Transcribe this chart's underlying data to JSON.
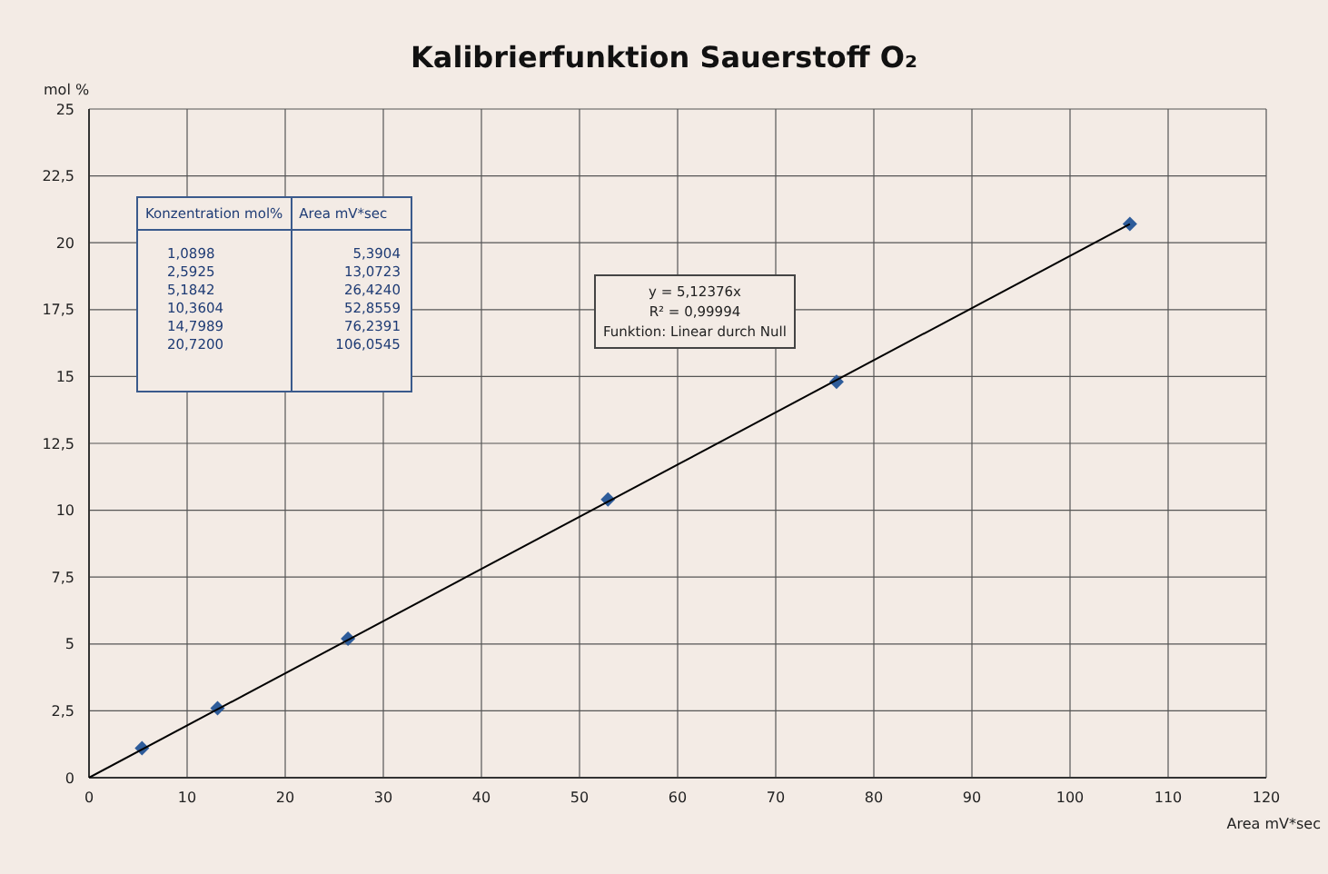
{
  "chart_data": {
    "type": "scatter",
    "title": "Kalibrierfunktion Sauerstoff O₂",
    "xlabel": "Area mV*sec",
    "ylabel": "mol %",
    "xlim": [
      0,
      120
    ],
    "xticks": [
      0,
      10,
      20,
      30,
      40,
      50,
      60,
      70,
      80,
      90,
      100,
      110,
      120
    ],
    "ylim": [
      0,
      25
    ],
    "yticks": [
      0,
      {
        "value": 2.5,
        "label": "2,5"
      },
      5,
      {
        "value": 7.5,
        "label": "7,5"
      },
      10,
      {
        "value": 12.5,
        "label": "12,5"
      },
      15,
      {
        "value": 17.5,
        "label": "17,5"
      },
      20,
      {
        "value": 22.5,
        "label": "22,5"
      },
      25
    ],
    "grid": true,
    "marker": "diamond",
    "series": [
      {
        "color": "#2e5c9a",
        "x": [
          5.4,
          13.1,
          26.4,
          52.9,
          76.2,
          106.1
        ],
        "values": [
          1.1,
          2.6,
          5.2,
          10.4,
          14.8,
          20.7
        ]
      },
      {
        "type": "line",
        "marker": "none",
        "color": "#000000",
        "line_style": "solid",
        "x": [
          0,
          106.1
        ],
        "values": [
          0,
          20.7
        ]
      }
    ],
    "annotations": [
      "Konzentration mol%",
      "Area mV*sec",
      "1,0898",
      "2,5925",
      "5,1842",
      "10,3604",
      "14,7989",
      "20,7200",
      "5,3904",
      "13,0723",
      "26,4240",
      "52,8559",
      "76,2391",
      "106,0545",
      "y = 5,12376x",
      "R² = 0,99994",
      "Funktion: Linear durch Null"
    ]
  }
}
